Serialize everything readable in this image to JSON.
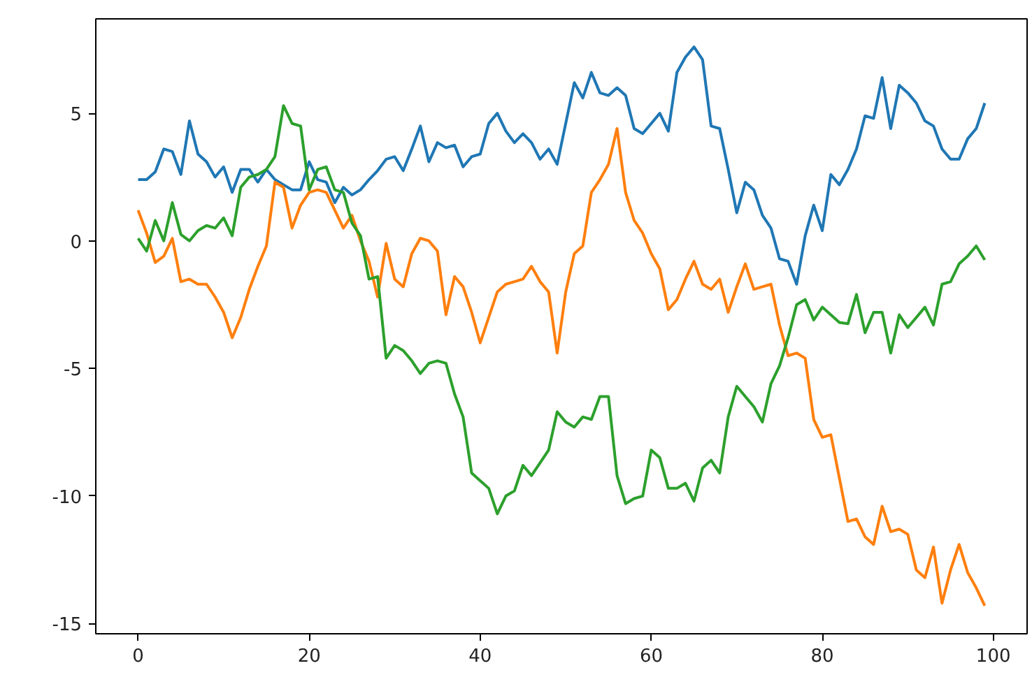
{
  "chart_data": {
    "type": "line",
    "x": [
      0,
      1,
      2,
      3,
      4,
      5,
      6,
      7,
      8,
      9,
      10,
      11,
      12,
      13,
      14,
      15,
      16,
      17,
      18,
      19,
      20,
      21,
      22,
      23,
      24,
      25,
      26,
      27,
      28,
      29,
      30,
      31,
      32,
      33,
      34,
      35,
      36,
      37,
      38,
      39,
      40,
      41,
      42,
      43,
      44,
      45,
      46,
      47,
      48,
      49,
      50,
      51,
      52,
      53,
      54,
      55,
      56,
      57,
      58,
      59,
      60,
      61,
      62,
      63,
      64,
      65,
      66,
      67,
      68,
      69,
      70,
      71,
      72,
      73,
      74,
      75,
      76,
      77,
      78,
      79,
      80,
      81,
      82,
      83,
      84,
      85,
      86,
      87,
      88,
      89,
      90,
      91,
      92,
      93,
      94,
      95,
      96,
      97,
      98,
      99
    ],
    "series": [
      {
        "color": "#1f77b4",
        "values": [
          2.4,
          2.4,
          2.7,
          3.6,
          3.5,
          2.6,
          4.7,
          3.4,
          3.1,
          2.5,
          2.9,
          1.9,
          2.8,
          2.8,
          2.3,
          2.8,
          2.4,
          2.2,
          2.0,
          2.0,
          3.1,
          2.4,
          2.3,
          1.5,
          2.1,
          1.8,
          2.0,
          2.4,
          2.75,
          3.2,
          3.3,
          2.75,
          3.6,
          4.5,
          3.1,
          3.85,
          3.65,
          3.75,
          2.9,
          3.3,
          3.4,
          4.6,
          5.0,
          4.3,
          3.85,
          4.2,
          3.85,
          3.2,
          3.6,
          3.0,
          4.6,
          6.2,
          5.6,
          6.6,
          5.8,
          5.7,
          6.0,
          5.7,
          4.4,
          4.2,
          4.6,
          5.0,
          4.3,
          6.6,
          7.2,
          7.6,
          7.1,
          4.5,
          4.4,
          2.8,
          1.1,
          2.3,
          2.0,
          1.0,
          0.5,
          -0.7,
          -0.8,
          -1.7,
          0.2,
          1.4,
          0.4,
          2.6,
          2.2,
          2.8,
          3.6,
          4.9,
          4.8,
          6.4,
          4.4,
          6.1,
          5.8,
          5.4,
          4.7,
          4.5,
          3.6,
          3.2,
          3.2,
          4.0,
          4.4,
          5.4
        ]
      },
      {
        "color": "#ff7f0e",
        "values": [
          1.2,
          0.3,
          -0.85,
          -0.6,
          0.1,
          -1.6,
          -1.5,
          -1.7,
          -1.7,
          -2.2,
          -2.8,
          -3.8,
          -3.0,
          -1.9,
          -1.0,
          -0.2,
          2.3,
          2.1,
          0.5,
          1.4,
          1.9,
          2.0,
          1.9,
          1.2,
          0.5,
          1.0,
          0.0,
          -0.8,
          -2.2,
          -0.1,
          -1.5,
          -1.8,
          -0.5,
          0.1,
          0.0,
          -0.4,
          -2.9,
          -1.4,
          -1.8,
          -2.8,
          -4.0,
          -3.0,
          -2.0,
          -1.7,
          -1.6,
          -1.5,
          -1.0,
          -1.6,
          -2.0,
          -4.4,
          -2.0,
          -0.5,
          -0.2,
          1.9,
          2.4,
          3.0,
          4.4,
          1.9,
          0.8,
          0.3,
          -0.5,
          -1.1,
          -2.7,
          -2.3,
          -1.5,
          -0.8,
          -1.7,
          -1.9,
          -1.5,
          -2.8,
          -1.8,
          -0.9,
          -1.9,
          -1.8,
          -1.7,
          -3.3,
          -4.5,
          -4.4,
          -4.6,
          -7.0,
          -7.7,
          -7.6,
          -9.3,
          -11.0,
          -10.9,
          -11.6,
          -11.9,
          -10.4,
          -11.4,
          -11.3,
          -11.5,
          -12.9,
          -13.2,
          -12.0,
          -14.2,
          -12.9,
          -11.9,
          -13.0,
          -13.6,
          -14.3
        ]
      },
      {
        "color": "#2ca02c",
        "values": [
          0.1,
          -0.4,
          0.8,
          0.0,
          1.5,
          0.25,
          0.0,
          0.4,
          0.6,
          0.5,
          0.9,
          0.2,
          2.1,
          2.5,
          2.6,
          2.8,
          3.3,
          5.3,
          4.6,
          4.5,
          2.0,
          2.8,
          2.9,
          2.0,
          1.9,
          0.7,
          0.2,
          -1.5,
          -1.4,
          -4.6,
          -4.1,
          -4.3,
          -4.7,
          -5.2,
          -4.8,
          -4.7,
          -4.8,
          -6.0,
          -6.9,
          -9.1,
          -9.4,
          -9.7,
          -10.7,
          -10.0,
          -9.8,
          -8.8,
          -9.2,
          -8.7,
          -8.2,
          -6.7,
          -7.1,
          -7.3,
          -6.9,
          -7.0,
          -6.1,
          -6.1,
          -9.2,
          -10.3,
          -10.1,
          -10.0,
          -8.2,
          -8.5,
          -9.7,
          -9.7,
          -9.5,
          -10.2,
          -8.9,
          -8.6,
          -9.1,
          -6.9,
          -5.7,
          -6.1,
          -6.5,
          -7.1,
          -5.6,
          -4.9,
          -3.8,
          -2.5,
          -2.3,
          -3.1,
          -2.6,
          -2.9,
          -3.2,
          -3.25,
          -2.1,
          -3.6,
          -2.8,
          -2.8,
          -4.4,
          -2.9,
          -3.4,
          -3.0,
          -2.6,
          -3.3,
          -1.7,
          -1.6,
          -0.9,
          -0.6,
          -0.2,
          -0.75
        ]
      }
    ],
    "xlim": [
      -4.95,
      103.95
    ],
    "ylim": [
      -15.4,
      8.7
    ],
    "xticks": [
      0,
      20,
      40,
      60,
      80,
      100
    ],
    "yticks": [
      -15,
      -10,
      -5,
      0,
      5
    ],
    "grid": false,
    "marker": "none",
    "line_style": "solid"
  }
}
